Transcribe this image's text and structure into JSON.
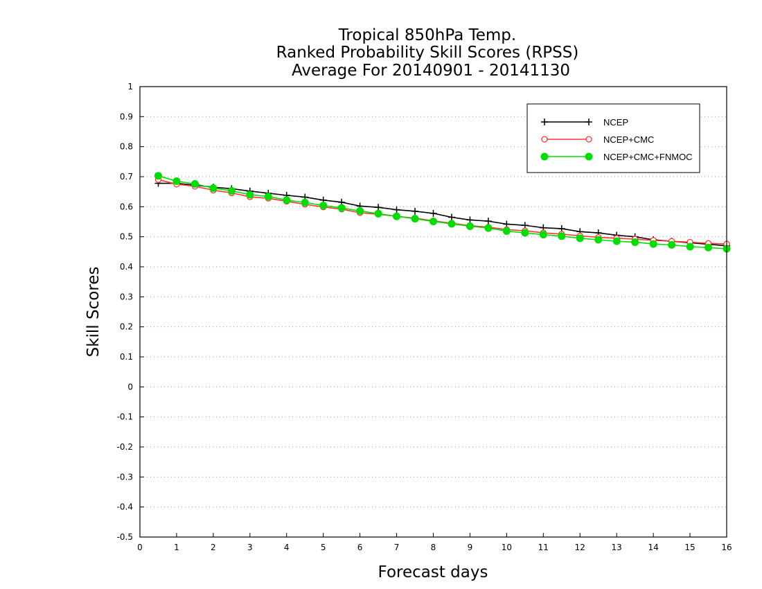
{
  "chart_data": {
    "type": "line",
    "title_lines": [
      "Tropical 850hPa Temp.",
      "Ranked Probability Skill Scores (RPSS)",
      "Average For 20140901 - 20141130"
    ],
    "xlabel": "Forecast days",
    "ylabel": "Skill Scores",
    "xlim": [
      0,
      16
    ],
    "ylim": [
      -0.5,
      1
    ],
    "xticks": [
      "0",
      "1",
      "2",
      "3",
      "4",
      "5",
      "6",
      "7",
      "8",
      "9",
      "10",
      "11",
      "12",
      "13",
      "14",
      "15",
      "16"
    ],
    "yticks": [
      "-0.5",
      "-0.4",
      "-0.3",
      "-0.2",
      "-0.1",
      "0",
      "0.1",
      "0.2",
      "0.3",
      "0.4",
      "0.5",
      "0.6",
      "0.7",
      "0.8",
      "0.9",
      "1"
    ],
    "grid": "horizontal dotted",
    "legend_position": "top-right",
    "x": [
      0.5,
      1,
      1.5,
      2,
      2.5,
      3,
      3.5,
      4,
      4.5,
      5,
      5.5,
      6,
      6.5,
      7,
      7.5,
      8,
      8.5,
      9,
      9.5,
      10,
      10.5,
      11,
      11.5,
      12,
      12.5,
      13,
      13.5,
      14,
      14.5,
      15,
      15.5,
      16
    ],
    "series": [
      {
        "name": "NCEP",
        "color": "#000000",
        "marker": "plus",
        "values": [
          0.678,
          0.678,
          0.672,
          0.665,
          0.66,
          0.652,
          0.645,
          0.638,
          0.632,
          0.622,
          0.615,
          0.602,
          0.598,
          0.59,
          0.585,
          0.578,
          0.565,
          0.556,
          0.552,
          0.542,
          0.538,
          0.53,
          0.527,
          0.517,
          0.513,
          0.505,
          0.5,
          0.49,
          0.485,
          0.48,
          0.475,
          0.47
        ]
      },
      {
        "name": "NCEP+CMC",
        "color": "#ff3333",
        "marker": "open-circle",
        "values": [
          0.69,
          0.675,
          0.668,
          0.655,
          0.646,
          0.633,
          0.628,
          0.618,
          0.608,
          0.599,
          0.592,
          0.58,
          0.575,
          0.568,
          0.562,
          0.553,
          0.545,
          0.537,
          0.532,
          0.524,
          0.52,
          0.513,
          0.509,
          0.503,
          0.498,
          0.495,
          0.492,
          0.488,
          0.485,
          0.482,
          0.478,
          0.476
        ]
      },
      {
        "name": "NCEP+CMC+FNMOC",
        "color": "#00dd00",
        "marker": "filled-circle",
        "values": [
          0.703,
          0.685,
          0.676,
          0.662,
          0.653,
          0.64,
          0.634,
          0.622,
          0.614,
          0.604,
          0.596,
          0.586,
          0.577,
          0.568,
          0.56,
          0.551,
          0.543,
          0.535,
          0.529,
          0.519,
          0.513,
          0.507,
          0.502,
          0.495,
          0.49,
          0.485,
          0.482,
          0.476,
          0.473,
          0.467,
          0.464,
          0.46
        ]
      }
    ]
  }
}
